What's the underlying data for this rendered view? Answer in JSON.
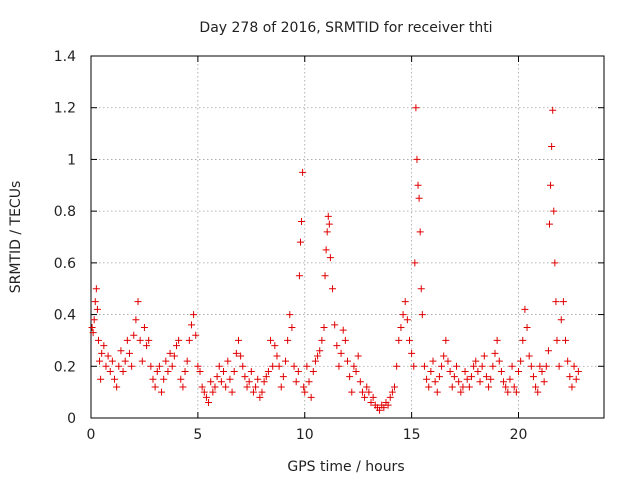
{
  "chart_data": {
    "type": "scatter",
    "title": "Day 278 of 2016, SRMTID for receiver thti",
    "xlabel": "GPS time / hours",
    "ylabel": "SRMTID / TECUs",
    "xlim": [
      0,
      24
    ],
    "ylim": [
      0,
      1.4
    ],
    "x_ticks": [
      0,
      5,
      10,
      15,
      20
    ],
    "y_ticks": [
      0,
      0.2,
      0.4,
      0.6,
      0.8,
      1,
      1.2,
      1.4
    ],
    "x_tick_labels": [
      "0",
      "5",
      "10",
      "15",
      "20"
    ],
    "y_tick_labels": [
      "0",
      "0.2",
      "0.4",
      "0.6",
      "0.8",
      "1",
      "1.2",
      "1.4"
    ],
    "grid": true,
    "legend": "none",
    "marker": "+",
    "color": "#e00000",
    "series": [
      {
        "name": "SRMTID",
        "points": [
          [
            0.05,
            0.35
          ],
          [
            0.1,
            0.33
          ],
          [
            0.15,
            0.38
          ],
          [
            0.2,
            0.45
          ],
          [
            0.25,
            0.5
          ],
          [
            0.3,
            0.42
          ],
          [
            0.35,
            0.3
          ],
          [
            0.4,
            0.22
          ],
          [
            0.45,
            0.15
          ],
          [
            0.5,
            0.25
          ],
          [
            0.6,
            0.28
          ],
          [
            0.7,
            0.2
          ],
          [
            0.8,
            0.24
          ],
          [
            0.9,
            0.18
          ],
          [
            1.0,
            0.22
          ],
          [
            1.1,
            0.15
          ],
          [
            1.2,
            0.12
          ],
          [
            1.3,
            0.2
          ],
          [
            1.4,
            0.26
          ],
          [
            1.5,
            0.18
          ],
          [
            1.6,
            0.22
          ],
          [
            1.7,
            0.3
          ],
          [
            1.8,
            0.25
          ],
          [
            1.9,
            0.2
          ],
          [
            2.0,
            0.32
          ],
          [
            2.1,
            0.38
          ],
          [
            2.2,
            0.45
          ],
          [
            2.3,
            0.3
          ],
          [
            2.4,
            0.22
          ],
          [
            2.5,
            0.35
          ],
          [
            2.6,
            0.28
          ],
          [
            2.7,
            0.3
          ],
          [
            2.8,
            0.2
          ],
          [
            2.9,
            0.15
          ],
          [
            3.0,
            0.12
          ],
          [
            3.1,
            0.18
          ],
          [
            3.2,
            0.2
          ],
          [
            3.3,
            0.1
          ],
          [
            3.4,
            0.15
          ],
          [
            3.5,
            0.22
          ],
          [
            3.6,
            0.18
          ],
          [
            3.7,
            0.25
          ],
          [
            3.8,
            0.2
          ],
          [
            3.9,
            0.24
          ],
          [
            4.0,
            0.28
          ],
          [
            4.1,
            0.3
          ],
          [
            4.2,
            0.15
          ],
          [
            4.3,
            0.12
          ],
          [
            4.4,
            0.18
          ],
          [
            4.5,
            0.22
          ],
          [
            4.6,
            0.3
          ],
          [
            4.7,
            0.36
          ],
          [
            4.8,
            0.4
          ],
          [
            4.9,
            0.32
          ],
          [
            5.0,
            0.2
          ],
          [
            5.1,
            0.18
          ],
          [
            5.2,
            0.12
          ],
          [
            5.3,
            0.1
          ],
          [
            5.4,
            0.08
          ],
          [
            5.5,
            0.06
          ],
          [
            5.6,
            0.14
          ],
          [
            5.7,
            0.1
          ],
          [
            5.8,
            0.12
          ],
          [
            5.9,
            0.16
          ],
          [
            6.0,
            0.2
          ],
          [
            6.1,
            0.14
          ],
          [
            6.2,
            0.18
          ],
          [
            6.3,
            0.12
          ],
          [
            6.4,
            0.22
          ],
          [
            6.5,
            0.15
          ],
          [
            6.6,
            0.1
          ],
          [
            6.7,
            0.18
          ],
          [
            6.8,
            0.25
          ],
          [
            6.9,
            0.3
          ],
          [
            7.0,
            0.24
          ],
          [
            7.1,
            0.2
          ],
          [
            7.2,
            0.16
          ],
          [
            7.3,
            0.12
          ],
          [
            7.4,
            0.14
          ],
          [
            7.5,
            0.18
          ],
          [
            7.6,
            0.1
          ],
          [
            7.7,
            0.12
          ],
          [
            7.8,
            0.15
          ],
          [
            7.9,
            0.08
          ],
          [
            8.0,
            0.1
          ],
          [
            8.1,
            0.14
          ],
          [
            8.2,
            0.16
          ],
          [
            8.3,
            0.18
          ],
          [
            8.4,
            0.3
          ],
          [
            8.5,
            0.2
          ],
          [
            8.6,
            0.28
          ],
          [
            8.7,
            0.24
          ],
          [
            8.8,
            0.2
          ],
          [
            8.9,
            0.12
          ],
          [
            9.0,
            0.16
          ],
          [
            9.1,
            0.22
          ],
          [
            9.2,
            0.3
          ],
          [
            9.3,
            0.4
          ],
          [
            9.4,
            0.35
          ],
          [
            9.5,
            0.2
          ],
          [
            9.6,
            0.14
          ],
          [
            9.7,
            0.18
          ],
          [
            9.75,
            0.55
          ],
          [
            9.8,
            0.68
          ],
          [
            9.85,
            0.76
          ],
          [
            9.9,
            0.95
          ],
          [
            9.95,
            0.12
          ],
          [
            10.0,
            0.1
          ],
          [
            10.1,
            0.2
          ],
          [
            10.2,
            0.14
          ],
          [
            10.3,
            0.08
          ],
          [
            10.4,
            0.18
          ],
          [
            10.5,
            0.22
          ],
          [
            10.6,
            0.24
          ],
          [
            10.7,
            0.26
          ],
          [
            10.8,
            0.3
          ],
          [
            10.9,
            0.35
          ],
          [
            10.95,
            0.55
          ],
          [
            11.0,
            0.65
          ],
          [
            11.05,
            0.72
          ],
          [
            11.1,
            0.78
          ],
          [
            11.15,
            0.75
          ],
          [
            11.2,
            0.62
          ],
          [
            11.3,
            0.5
          ],
          [
            11.4,
            0.36
          ],
          [
            11.5,
            0.28
          ],
          [
            11.6,
            0.2
          ],
          [
            11.7,
            0.25
          ],
          [
            11.8,
            0.34
          ],
          [
            11.9,
            0.3
          ],
          [
            12.0,
            0.22
          ],
          [
            12.1,
            0.16
          ],
          [
            12.2,
            0.1
          ],
          [
            12.3,
            0.2
          ],
          [
            12.4,
            0.18
          ],
          [
            12.5,
            0.24
          ],
          [
            12.6,
            0.14
          ],
          [
            12.7,
            0.1
          ],
          [
            12.8,
            0.08
          ],
          [
            12.9,
            0.12
          ],
          [
            13.0,
            0.1
          ],
          [
            13.1,
            0.06
          ],
          [
            13.2,
            0.08
          ],
          [
            13.3,
            0.05
          ],
          [
            13.4,
            0.04
          ],
          [
            13.5,
            0.03
          ],
          [
            13.6,
            0.05
          ],
          [
            13.7,
            0.04
          ],
          [
            13.8,
            0.06
          ],
          [
            13.9,
            0.05
          ],
          [
            14.0,
            0.08
          ],
          [
            14.1,
            0.1
          ],
          [
            14.2,
            0.12
          ],
          [
            14.3,
            0.2
          ],
          [
            14.4,
            0.3
          ],
          [
            14.5,
            0.35
          ],
          [
            14.6,
            0.4
          ],
          [
            14.7,
            0.45
          ],
          [
            14.8,
            0.38
          ],
          [
            14.9,
            0.3
          ],
          [
            15.0,
            0.25
          ],
          [
            15.1,
            0.2
          ],
          [
            15.15,
            0.6
          ],
          [
            15.2,
            1.2
          ],
          [
            15.25,
            1.0
          ],
          [
            15.3,
            0.9
          ],
          [
            15.35,
            0.85
          ],
          [
            15.4,
            0.72
          ],
          [
            15.45,
            0.5
          ],
          [
            15.5,
            0.4
          ],
          [
            15.6,
            0.2
          ],
          [
            15.7,
            0.15
          ],
          [
            15.8,
            0.12
          ],
          [
            15.9,
            0.18
          ],
          [
            16.0,
            0.22
          ],
          [
            16.1,
            0.14
          ],
          [
            16.2,
            0.1
          ],
          [
            16.3,
            0.16
          ],
          [
            16.4,
            0.2
          ],
          [
            16.5,
            0.24
          ],
          [
            16.6,
            0.3
          ],
          [
            16.7,
            0.22
          ],
          [
            16.8,
            0.18
          ],
          [
            16.9,
            0.12
          ],
          [
            17.0,
            0.16
          ],
          [
            17.1,
            0.2
          ],
          [
            17.2,
            0.14
          ],
          [
            17.3,
            0.1
          ],
          [
            17.4,
            0.12
          ],
          [
            17.5,
            0.18
          ],
          [
            17.6,
            0.15
          ],
          [
            17.7,
            0.12
          ],
          [
            17.8,
            0.16
          ],
          [
            17.9,
            0.2
          ],
          [
            18.0,
            0.22
          ],
          [
            18.1,
            0.18
          ],
          [
            18.2,
            0.14
          ],
          [
            18.3,
            0.2
          ],
          [
            18.4,
            0.24
          ],
          [
            18.5,
            0.16
          ],
          [
            18.6,
            0.12
          ],
          [
            18.7,
            0.15
          ],
          [
            18.8,
            0.2
          ],
          [
            18.9,
            0.25
          ],
          [
            19.0,
            0.3
          ],
          [
            19.1,
            0.22
          ],
          [
            19.2,
            0.18
          ],
          [
            19.3,
            0.14
          ],
          [
            19.4,
            0.12
          ],
          [
            19.5,
            0.1
          ],
          [
            19.6,
            0.15
          ],
          [
            19.7,
            0.2
          ],
          [
            19.8,
            0.12
          ],
          [
            19.9,
            0.1
          ],
          [
            20.0,
            0.18
          ],
          [
            20.1,
            0.22
          ],
          [
            20.2,
            0.3
          ],
          [
            20.3,
            0.42
          ],
          [
            20.4,
            0.35
          ],
          [
            20.5,
            0.24
          ],
          [
            20.6,
            0.2
          ],
          [
            20.7,
            0.16
          ],
          [
            20.8,
            0.12
          ],
          [
            20.9,
            0.1
          ],
          [
            21.0,
            0.2
          ],
          [
            21.1,
            0.18
          ],
          [
            21.2,
            0.14
          ],
          [
            21.3,
            0.2
          ],
          [
            21.4,
            0.26
          ],
          [
            21.45,
            0.75
          ],
          [
            21.5,
            0.9
          ],
          [
            21.55,
            1.05
          ],
          [
            21.6,
            1.19
          ],
          [
            21.65,
            0.8
          ],
          [
            21.7,
            0.6
          ],
          [
            21.75,
            0.45
          ],
          [
            21.8,
            0.3
          ],
          [
            21.9,
            0.2
          ],
          [
            22.0,
            0.38
          ],
          [
            22.1,
            0.45
          ],
          [
            22.2,
            0.3
          ],
          [
            22.3,
            0.22
          ],
          [
            22.4,
            0.16
          ],
          [
            22.5,
            0.12
          ],
          [
            22.6,
            0.2
          ],
          [
            22.7,
            0.15
          ],
          [
            22.8,
            0.18
          ]
        ]
      }
    ]
  }
}
